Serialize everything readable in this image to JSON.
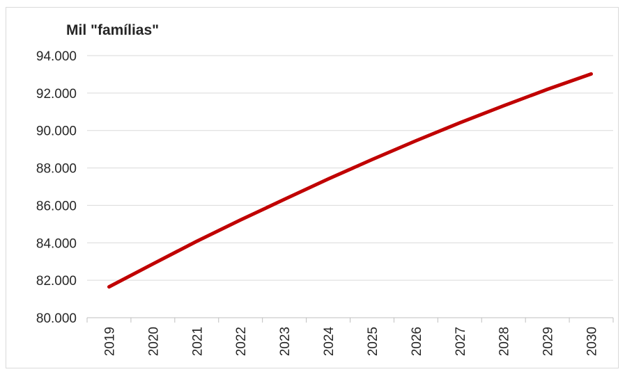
{
  "chart_data": {
    "type": "line",
    "title": "Mil \"famílias\"",
    "xlabel": "",
    "ylabel": "",
    "ylim": [
      80000,
      94000
    ],
    "yticks": [
      80000,
      82000,
      84000,
      86000,
      88000,
      90000,
      92000,
      94000
    ],
    "ytick_labels": [
      "80.000",
      "82.000",
      "84.000",
      "86.000",
      "88.000",
      "90.000",
      "92.000",
      "94.000"
    ],
    "categories": [
      "2019",
      "2020",
      "2021",
      "2022",
      "2023",
      "2024",
      "2025",
      "2026",
      "2027",
      "2028",
      "2029",
      "2030"
    ],
    "series": [
      {
        "values": [
          81650,
          82870,
          84080,
          85220,
          86320,
          87410,
          88450,
          89450,
          90410,
          91320,
          92200,
          93020
        ],
        "color": "#c00000"
      }
    ],
    "grid": "horizontal",
    "legend": "none"
  }
}
